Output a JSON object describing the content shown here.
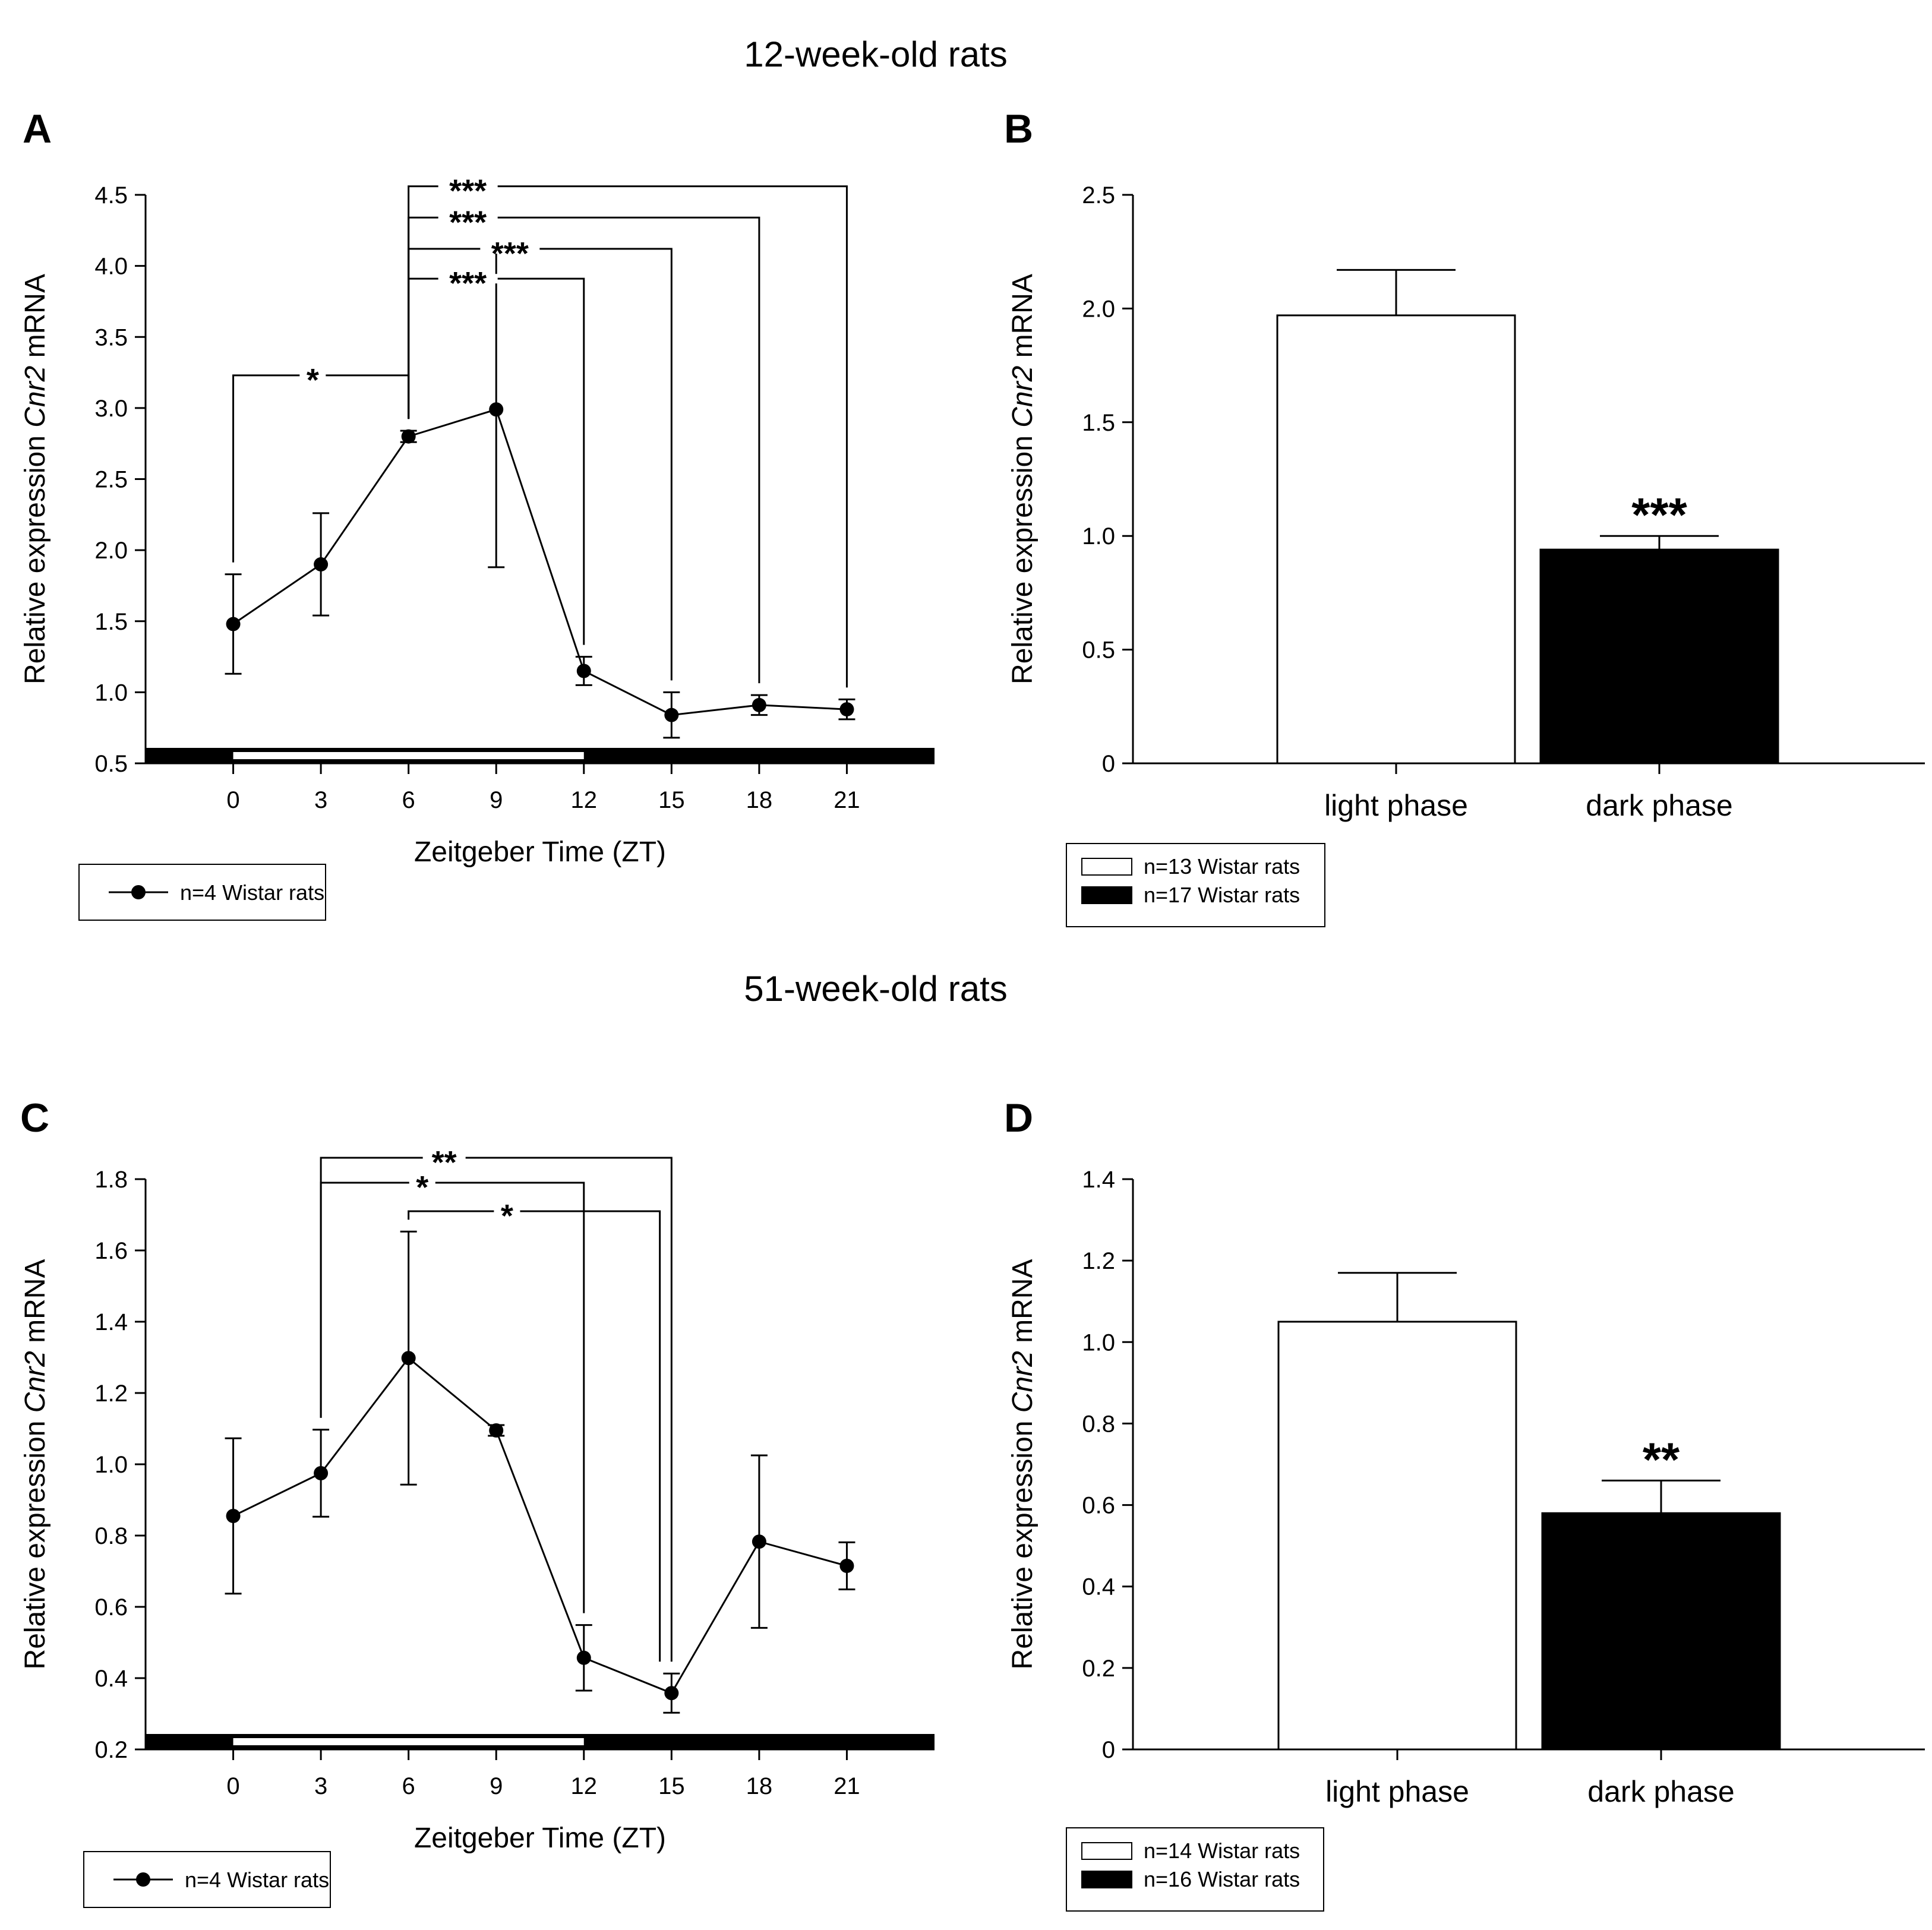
{
  "figure": {
    "sections": [
      {
        "title": "12-week-old rats"
      },
      {
        "title": "51-week-old rats"
      }
    ]
  },
  "chart_data": [
    {
      "panel": "A",
      "type": "line",
      "xlabel": "Zeitgeber Time (ZT)",
      "ylabel_parts": [
        "Relative expression ",
        "Cnr2",
        " mRNA"
      ],
      "x": [
        0,
        3,
        6,
        9,
        12,
        15,
        18,
        21
      ],
      "xticks": [
        "0",
        "3",
        "6",
        "9",
        "12",
        "15",
        "18",
        "21"
      ],
      "xlim": [
        -3,
        24
      ],
      "ylim": [
        0.5,
        4.5
      ],
      "yticks": [
        "0.5",
        "1.0",
        "1.5",
        "2.0",
        "2.5",
        "3.0",
        "3.5",
        "4.0",
        "4.5"
      ],
      "series": [
        {
          "name": "n=4 Wistar rats",
          "values": [
            1.48,
            1.9,
            2.8,
            2.99,
            1.15,
            0.84,
            0.91,
            0.88
          ],
          "error": [
            0.35,
            0.36,
            0.04,
            1.11,
            0.1,
            0.16,
            0.07,
            0.07
          ]
        }
      ],
      "light_bar": {
        "light": [
          0,
          12
        ]
      },
      "significance": [
        {
          "from": 0,
          "to": 6,
          "label": "*",
          "level": 3.23
        },
        {
          "from": 6,
          "to": 12,
          "label": "***",
          "level": 3.91
        },
        {
          "from": 6,
          "to": 15,
          "label": "***",
          "level": 4.12
        },
        {
          "from": 6,
          "to": 18,
          "label": "***",
          "level": 4.34
        },
        {
          "from": 6,
          "to": 21,
          "label": "***",
          "level": 4.56
        }
      ],
      "legend": [
        "n=4 Wistar rats"
      ]
    },
    {
      "panel": "B",
      "type": "bar",
      "categories": [
        "light phase",
        "dark phase"
      ],
      "values": [
        1.97,
        0.94
      ],
      "error": [
        0.2,
        0.06
      ],
      "colors": [
        "#ffffff",
        "#000000"
      ],
      "ylabel_parts": [
        "Relative expression ",
        "Cnr2",
        " mRNA"
      ],
      "ylim": [
        0,
        2.5
      ],
      "yticks": [
        "0",
        "0.5",
        "1.0",
        "1.5",
        "2.0",
        "2.5"
      ],
      "stars": [
        "",
        "***"
      ],
      "legend": [
        "n=13 Wistar rats",
        "n=17 Wistar rats"
      ]
    },
    {
      "panel": "C",
      "type": "line",
      "xlabel": "Zeitgeber Time (ZT)",
      "ylabel_parts": [
        "Relative expression ",
        "Cnr2",
        " mRNA"
      ],
      "x": [
        0,
        3,
        6,
        9,
        12,
        15,
        18,
        21
      ],
      "xticks": [
        "0",
        "3",
        "6",
        "9",
        "12",
        "15",
        "18",
        "21"
      ],
      "xlim": [
        -3,
        24
      ],
      "ylim": [
        0.2,
        1.8
      ],
      "yticks": [
        "0.2",
        "0.4",
        "0.6",
        "0.8",
        "1.0",
        "1.2",
        "1.4",
        "1.6",
        "1.8"
      ],
      "series": [
        {
          "name": "n=4 Wistar rats",
          "values": [
            0.855,
            0.975,
            1.298,
            1.095,
            0.457,
            0.358,
            0.783,
            0.715
          ],
          "error": [
            0.218,
            0.122,
            0.355,
            0.015,
            0.092,
            0.055,
            0.242,
            0.066
          ]
        }
      ],
      "light_bar": {
        "light": [
          0,
          12
        ]
      },
      "significance": [
        {
          "from": 6,
          "to": 14.6,
          "label": "*",
          "level": 1.71
        },
        {
          "from": 3,
          "to": 12,
          "label": "*",
          "level": 1.79
        },
        {
          "from": 3,
          "to": 15,
          "label": "**",
          "level": 1.86
        }
      ],
      "legend": [
        "n=4 Wistar rats"
      ]
    },
    {
      "panel": "D",
      "type": "bar",
      "categories": [
        "light phase",
        "dark phase"
      ],
      "values": [
        1.05,
        0.58
      ],
      "error": [
        0.12,
        0.08
      ],
      "colors": [
        "#ffffff",
        "#000000"
      ],
      "ylabel_parts": [
        "Relative expression ",
        "Cnr2",
        " mRNA"
      ],
      "ylim": [
        0,
        1.4
      ],
      "yticks": [
        "0",
        "0.2",
        "0.4",
        "0.6",
        "0.8",
        "1.0",
        "1.2",
        "1.4"
      ],
      "stars": [
        "",
        "**"
      ],
      "legend": [
        "n=14 Wistar rats",
        "n=16 Wistar rats"
      ]
    }
  ]
}
